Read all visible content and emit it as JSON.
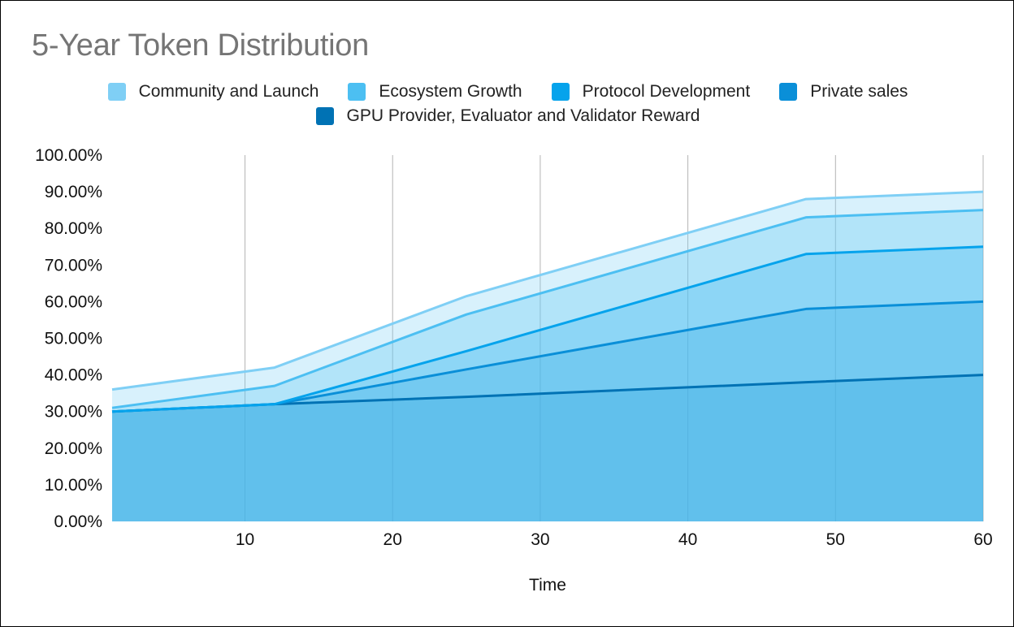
{
  "chart_data": {
    "type": "area",
    "title": "5-Year Token Distribution",
    "xlabel": "Time",
    "ylabel": "",
    "x": [
      1,
      12,
      25,
      48,
      60
    ],
    "xlim": [
      1,
      60
    ],
    "ylim": [
      0,
      1
    ],
    "x_ticks": [
      10,
      20,
      30,
      40,
      50,
      60
    ],
    "y_ticks": [
      {
        "value": 0,
        "label": "0.00%"
      },
      {
        "value": 0.1,
        "label": "10.00%"
      },
      {
        "value": 0.2,
        "label": "20.00%"
      },
      {
        "value": 0.3,
        "label": "30.00%"
      },
      {
        "value": 0.4,
        "label": "40.00%"
      },
      {
        "value": 0.5,
        "label": "50.00%"
      },
      {
        "value": 0.6,
        "label": "60.00%"
      },
      {
        "value": 0.7,
        "label": "70.00%"
      },
      {
        "value": 0.8,
        "label": "80.00%"
      },
      {
        "value": 0.9,
        "label": "90.00%"
      },
      {
        "value": 1,
        "label": "100.00%"
      }
    ],
    "grid": "vertical",
    "legend_position": "top",
    "stacked": true,
    "series": [
      {
        "name": "GPU Provider, Evaluator and Validator Reward",
        "color": "#0072b4",
        "values": [
          0.3,
          0.32,
          0.34,
          0.38,
          0.4
        ]
      },
      {
        "name": "Private sales",
        "color": "#0a8fd8",
        "values": [
          0.0,
          0.0,
          0.075,
          0.2,
          0.2
        ]
      },
      {
        "name": "Protocol Development",
        "color": "#05a3ec",
        "values": [
          0.0,
          0.0,
          0.05,
          0.15,
          0.15
        ]
      },
      {
        "name": "Ecosystem Growth",
        "color": "#4cbff2",
        "values": [
          0.01,
          0.05,
          0.1,
          0.1,
          0.1
        ]
      },
      {
        "name": "Community and Launch",
        "color": "#7fcff5",
        "values": [
          0.05,
          0.05,
          0.05,
          0.05,
          0.05
        ]
      }
    ],
    "legend_order": [
      [
        "Community and Launch",
        "Ecosystem Growth",
        "Protocol Development",
        "Private sales"
      ],
      [
        "GPU Provider, Evaluator and Validator Reward"
      ]
    ]
  }
}
